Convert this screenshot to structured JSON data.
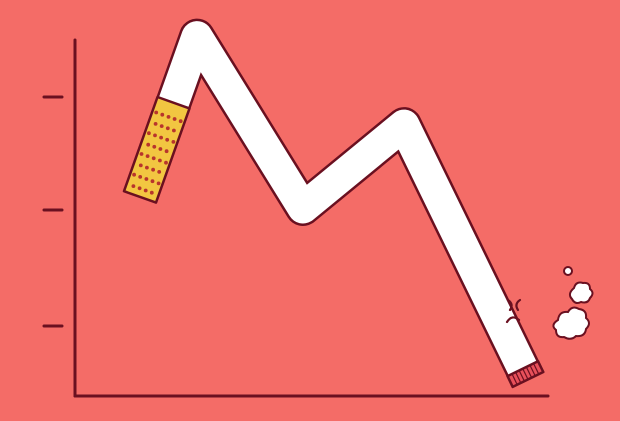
{
  "colors": {
    "background": "#f46c67",
    "outline": "#6a1020",
    "paper": "#ffffff",
    "filter": "#f2c641",
    "filter_dots": "#b8352c",
    "ember": "#e8505a"
  },
  "icons": {
    "cigarette": "cigarette-line-icon",
    "smoke": "smoke-puff-icon",
    "face": "sad-face-icon"
  },
  "chart_data": {
    "type": "line",
    "values": [
      1.8,
      3.25,
      1.7,
      2.45,
      0.15
    ],
    "ylim": [
      0,
      3.4
    ],
    "grid": false,
    "y_ticks": 3
  }
}
